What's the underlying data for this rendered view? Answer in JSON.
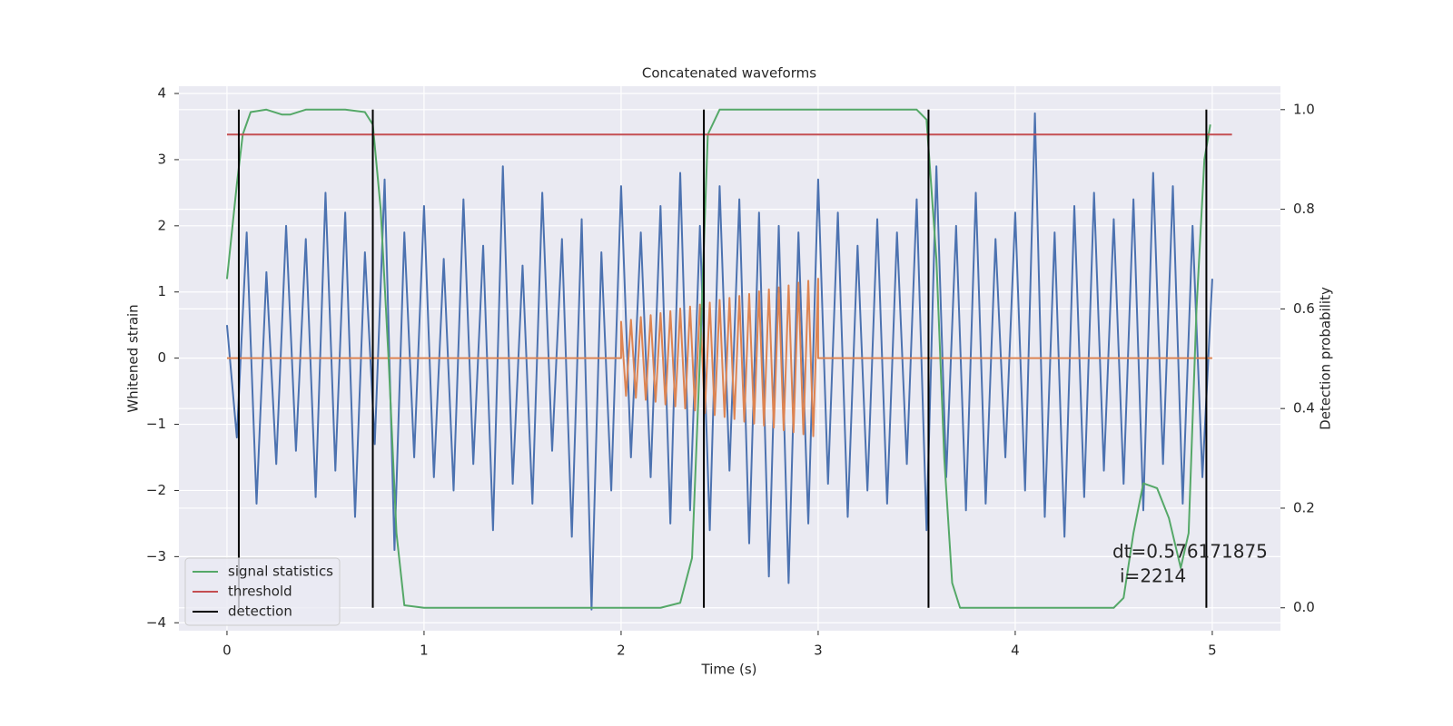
{
  "chart_data": {
    "type": "line",
    "title": "Concatenated waveforms",
    "x_label": "Time (s)",
    "y_label": "Whitened strain",
    "y2_label": "Detection probability",
    "xlim": [
      -0.244,
      5.346
    ],
    "ylim": [
      -4.12,
      4.11
    ],
    "y2lim": [
      -0.046,
      1.047
    ],
    "xticks": [
      0,
      1,
      2,
      3,
      4,
      5
    ],
    "yticks": [
      {
        "value": -4,
        "label": "−4"
      },
      {
        "value": -3,
        "label": "−3"
      },
      {
        "value": -2,
        "label": "−2"
      },
      {
        "value": -1,
        "label": "−1"
      },
      0,
      1,
      2,
      3,
      4
    ],
    "y2ticks": [
      {
        "value": 0,
        "label": "0.0"
      },
      0.2,
      0.4,
      0.6,
      0.8,
      {
        "value": 1,
        "label": "1.0"
      }
    ],
    "grid": true,
    "legend": "lower left",
    "annotations": [
      "dt=0.576171875",
      "i=2214"
    ],
    "series": [
      {
        "color": "#4c72b0",
        "x": [
          0,
          0.05,
          0.1,
          0.15,
          0.2,
          0.25,
          0.3,
          0.35,
          0.4,
          0.45,
          0.5,
          0.55,
          0.6,
          0.65,
          0.7,
          0.75,
          0.8,
          0.85,
          0.9,
          0.95,
          1,
          1.05,
          1.1,
          1.15,
          1.2,
          1.25,
          1.3,
          1.35,
          1.4,
          1.45,
          1.5,
          1.55,
          1.6,
          1.65,
          1.7,
          1.75,
          1.8,
          1.85,
          1.9,
          1.95,
          2,
          2.05,
          2.1,
          2.15,
          2.2,
          2.25,
          2.3,
          2.35,
          2.4,
          2.45,
          2.5,
          2.55,
          2.6,
          2.65,
          2.7,
          2.75,
          2.8,
          2.85,
          2.9,
          2.95,
          3,
          3.05,
          3.1,
          3.15,
          3.2,
          3.25,
          3.3,
          3.35,
          3.4,
          3.45,
          3.5,
          3.55,
          3.6,
          3.65,
          3.7,
          3.75,
          3.8,
          3.85,
          3.9,
          3.95,
          4,
          4.05,
          4.1,
          4.15,
          4.2,
          4.25,
          4.3,
          4.35,
          4.4,
          4.45,
          4.5,
          4.55,
          4.6,
          4.65,
          4.7,
          4.75,
          4.8,
          4.85,
          4.9,
          4.95,
          5
        ],
        "values": [
          0.5,
          -1.2,
          1.9,
          -2.2,
          1.3,
          -1.6,
          2.0,
          -1.4,
          1.8,
          -2.1,
          2.5,
          -1.7,
          2.2,
          -2.4,
          1.6,
          -1.3,
          2.7,
          -2.9,
          1.9,
          -1.5,
          2.3,
          -1.8,
          1.5,
          -2.0,
          2.4,
          -1.6,
          1.7,
          -2.6,
          2.9,
          -1.9,
          1.4,
          -2.2,
          2.5,
          -1.4,
          1.8,
          -2.7,
          2.1,
          -3.8,
          1.6,
          -2.0,
          2.6,
          -1.5,
          1.9,
          -1.8,
          2.3,
          -2.5,
          2.8,
          -2.3,
          2.0,
          -2.6,
          2.6,
          -1.7,
          2.4,
          -2.8,
          2.2,
          -3.3,
          2.0,
          -3.4,
          1.9,
          -2.5,
          2.7,
          -1.9,
          2.2,
          -2.4,
          1.7,
          -2.0,
          2.1,
          -2.2,
          1.9,
          -1.6,
          2.4,
          -2.6,
          2.9,
          -1.8,
          2.0,
          -2.3,
          2.5,
          -2.2,
          1.8,
          -1.5,
          2.2,
          -2.0,
          3.7,
          -2.4,
          1.9,
          -2.7,
          2.3,
          -2.1,
          2.5,
          -1.7,
          2.1,
          -1.9,
          2.4,
          -2.3,
          2.8,
          -1.6,
          2.6,
          -2.2,
          2.0,
          -1.8,
          1.2
        ]
      },
      {
        "color": "#dd8452",
        "x": [
          0,
          2,
          2,
          2.025,
          2.05,
          2.075,
          2.1,
          2.125,
          2.15,
          2.175,
          2.2,
          2.225,
          2.25,
          2.275,
          2.3,
          2.325,
          2.35,
          2.375,
          2.4,
          2.425,
          2.45,
          2.475,
          2.5,
          2.525,
          2.55,
          2.575,
          2.6,
          2.625,
          2.65,
          2.675,
          2.7,
          2.725,
          2.75,
          2.775,
          2.8,
          2.825,
          2.85,
          2.875,
          2.9,
          2.925,
          2.95,
          2.975,
          3,
          3,
          5
        ],
        "values": [
          0,
          0,
          0.55,
          -0.57,
          0.58,
          -0.6,
          0.62,
          -0.63,
          0.65,
          -0.66,
          0.68,
          -0.7,
          0.71,
          -0.73,
          0.75,
          -0.76,
          0.78,
          -0.79,
          0.81,
          -0.83,
          0.84,
          -0.86,
          0.88,
          -0.89,
          0.91,
          -0.92,
          0.94,
          -0.96,
          0.97,
          -0.99,
          1.01,
          -1.02,
          1.04,
          -1.05,
          1.07,
          -1.09,
          1.1,
          -1.12,
          1.14,
          -1.15,
          1.17,
          -1.18,
          1.2,
          0,
          0
        ]
      },
      {
        "name": "signal statistics",
        "color": "#55a868",
        "axis": "y2",
        "x": [
          0,
          0.05,
          0.08,
          0.12,
          0.2,
          0.28,
          0.32,
          0.4,
          0.6,
          0.7,
          0.74,
          0.78,
          0.82,
          0.86,
          0.9,
          1,
          2.2,
          2.3,
          2.36,
          2.4,
          2.44,
          2.5,
          3.5,
          3.55,
          3.6,
          3.64,
          3.68,
          3.72,
          4.5,
          4.55,
          4.6,
          4.65,
          4.72,
          4.78,
          4.84,
          4.88,
          4.92,
          4.96,
          4.99
        ],
        "values": [
          0.66,
          0.85,
          0.95,
          0.995,
          1,
          0.99,
          0.99,
          1,
          1,
          0.995,
          0.97,
          0.8,
          0.5,
          0.15,
          0.005,
          0,
          0,
          0.01,
          0.1,
          0.5,
          0.95,
          1,
          1,
          0.98,
          0.7,
          0.3,
          0.05,
          0,
          0,
          0.02,
          0.15,
          0.25,
          0.24,
          0.18,
          0.08,
          0.15,
          0.6,
          0.9,
          0.97
        ]
      },
      {
        "name": "threshold",
        "color": "#c44e52",
        "axis": "y2",
        "x": [
          0,
          5.1
        ],
        "values": [
          0.95,
          0.95
        ]
      },
      {
        "name": "detection",
        "color": "#000000",
        "axis": "y2",
        "style": "vlines",
        "x": [
          0.06,
          0.74,
          2.42,
          3.56,
          4.97
        ],
        "ymin": 0,
        "ymax": 1
      }
    ]
  }
}
